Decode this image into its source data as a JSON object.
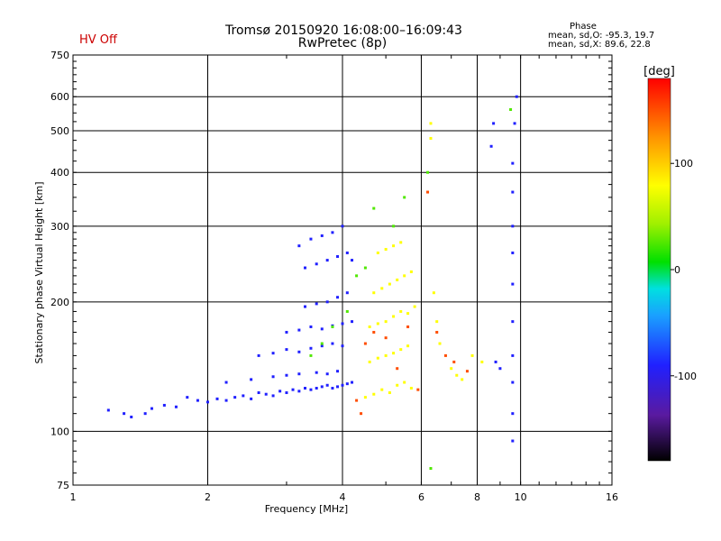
{
  "header": {
    "title_line1": "Tromsø 20150920 16:08:00–16:09:43",
    "title_line2": "RwPretec (8p)",
    "hv_status": "HV Off",
    "hv_color": "#cc0000",
    "phase_heading": "Phase",
    "phase_stats_o": "mean, sd,O: -95.3, 19.7",
    "phase_stats_x": "mean, sd,X:  89.6, 22.8"
  },
  "chart_data": {
    "type": "scatter",
    "title": "Tromsø 20150920 16:08:00–16:09:43",
    "subtitle": "RwPretec (8p)",
    "xlabel": "Frequency [MHz]",
    "ylabel": "Stationary phase Virtual Height [km]",
    "x_scale": "log",
    "y_scale": "log",
    "xlim": [
      1,
      16
    ],
    "ylim": [
      75,
      750
    ],
    "x_ticks": [
      1,
      2,
      4,
      6,
      8,
      10,
      16
    ],
    "y_ticks": [
      75,
      100,
      200,
      300,
      400,
      500,
      600,
      750
    ],
    "grid": true,
    "colorbar": {
      "label": "[deg]",
      "range": [
        -180,
        180
      ],
      "ticks": [
        -100,
        0,
        100
      ]
    },
    "series": [
      {
        "color_value_deg": -100,
        "points": [
          [
            1.2,
            112
          ],
          [
            1.3,
            110
          ],
          [
            1.35,
            108
          ],
          [
            1.45,
            110
          ],
          [
            1.5,
            113
          ],
          [
            1.6,
            115
          ],
          [
            1.7,
            114
          ],
          [
            1.8,
            120
          ],
          [
            1.9,
            118
          ],
          [
            2.0,
            117
          ],
          [
            2.1,
            119
          ],
          [
            2.2,
            118
          ],
          [
            2.3,
            120
          ],
          [
            2.4,
            121
          ],
          [
            2.5,
            119
          ],
          [
            2.6,
            123
          ],
          [
            2.7,
            122
          ],
          [
            2.8,
            121
          ],
          [
            2.9,
            124
          ],
          [
            3.0,
            123
          ],
          [
            3.1,
            125
          ],
          [
            3.2,
            124
          ],
          [
            3.3,
            126
          ],
          [
            3.4,
            125
          ],
          [
            3.5,
            126
          ],
          [
            3.6,
            127
          ],
          [
            3.7,
            128
          ],
          [
            3.8,
            126
          ],
          [
            3.9,
            127
          ],
          [
            4.0,
            128
          ],
          [
            4.1,
            129
          ],
          [
            4.2,
            130
          ],
          [
            2.2,
            130
          ],
          [
            2.5,
            132
          ],
          [
            2.8,
            134
          ],
          [
            3.0,
            135
          ],
          [
            3.2,
            136
          ],
          [
            3.5,
            137
          ],
          [
            3.7,
            136
          ],
          [
            3.9,
            138
          ],
          [
            2.6,
            150
          ],
          [
            2.8,
            152
          ],
          [
            3.0,
            155
          ],
          [
            3.2,
            153
          ],
          [
            3.4,
            156
          ],
          [
            3.6,
            158
          ],
          [
            3.8,
            160
          ],
          [
            4.0,
            158
          ],
          [
            3.0,
            170
          ],
          [
            3.2,
            172
          ],
          [
            3.4,
            175
          ],
          [
            3.6,
            173
          ],
          [
            3.8,
            176
          ],
          [
            4.0,
            178
          ],
          [
            4.2,
            180
          ],
          [
            3.3,
            195
          ],
          [
            3.5,
            198
          ],
          [
            3.7,
            200
          ],
          [
            3.9,
            205
          ],
          [
            4.1,
            210
          ],
          [
            3.3,
            240
          ],
          [
            3.5,
            245
          ],
          [
            3.7,
            250
          ],
          [
            3.9,
            255
          ],
          [
            4.1,
            260
          ],
          [
            4.2,
            250
          ],
          [
            3.2,
            270
          ],
          [
            3.4,
            280
          ],
          [
            3.6,
            285
          ],
          [
            3.8,
            290
          ],
          [
            4.0,
            300
          ],
          [
            9.6,
            95
          ],
          [
            9.6,
            110
          ],
          [
            9.6,
            130
          ],
          [
            9.6,
            150
          ],
          [
            9.6,
            180
          ],
          [
            9.6,
            220
          ],
          [
            9.6,
            260
          ],
          [
            9.6,
            300
          ],
          [
            9.6,
            360
          ],
          [
            9.6,
            420
          ],
          [
            9.7,
            520
          ],
          [
            9.8,
            600
          ],
          [
            8.6,
            460
          ],
          [
            8.7,
            520
          ],
          [
            9.0,
            140
          ],
          [
            8.8,
            145
          ]
        ]
      },
      {
        "color_value_deg": 100,
        "points": [
          [
            4.5,
            120
          ],
          [
            4.7,
            122
          ],
          [
            4.9,
            125
          ],
          [
            5.1,
            123
          ],
          [
            5.3,
            128
          ],
          [
            5.5,
            130
          ],
          [
            5.7,
            126
          ],
          [
            4.6,
            145
          ],
          [
            4.8,
            148
          ],
          [
            5.0,
            150
          ],
          [
            5.2,
            152
          ],
          [
            5.4,
            155
          ],
          [
            5.6,
            158
          ],
          [
            4.6,
            175
          ],
          [
            4.8,
            178
          ],
          [
            5.0,
            180
          ],
          [
            5.2,
            185
          ],
          [
            5.4,
            190
          ],
          [
            5.6,
            188
          ],
          [
            5.8,
            195
          ],
          [
            4.7,
            210
          ],
          [
            4.9,
            215
          ],
          [
            5.1,
            220
          ],
          [
            5.3,
            225
          ],
          [
            5.5,
            230
          ],
          [
            5.7,
            235
          ],
          [
            4.8,
            260
          ],
          [
            5.0,
            265
          ],
          [
            5.2,
            270
          ],
          [
            5.4,
            275
          ],
          [
            6.4,
            210
          ],
          [
            6.5,
            180
          ],
          [
            6.6,
            160
          ],
          [
            7.0,
            140
          ],
          [
            7.2,
            135
          ],
          [
            7.4,
            132
          ],
          [
            7.8,
            150
          ],
          [
            8.2,
            145
          ],
          [
            6.3,
            520
          ],
          [
            6.3,
            480
          ]
        ]
      },
      {
        "color_value_deg": 160,
        "points": [
          [
            4.3,
            118
          ],
          [
            4.5,
            160
          ],
          [
            4.7,
            170
          ],
          [
            5.0,
            165
          ],
          [
            5.3,
            140
          ],
          [
            5.6,
            175
          ],
          [
            6.8,
            150
          ],
          [
            7.1,
            145
          ],
          [
            7.6,
            138
          ],
          [
            6.5,
            170
          ],
          [
            6.2,
            360
          ],
          [
            4.4,
            110
          ],
          [
            5.9,
            125
          ]
        ]
      },
      {
        "color_value_deg": 20,
        "points": [
          [
            3.6,
            160
          ],
          [
            3.8,
            175
          ],
          [
            4.1,
            190
          ],
          [
            4.3,
            230
          ],
          [
            4.5,
            240
          ],
          [
            4.7,
            330
          ],
          [
            5.2,
            300
          ],
          [
            5.5,
            350
          ],
          [
            6.2,
            400
          ],
          [
            6.3,
            82
          ],
          [
            9.5,
            560
          ],
          [
            3.4,
            150
          ]
        ]
      }
    ]
  }
}
